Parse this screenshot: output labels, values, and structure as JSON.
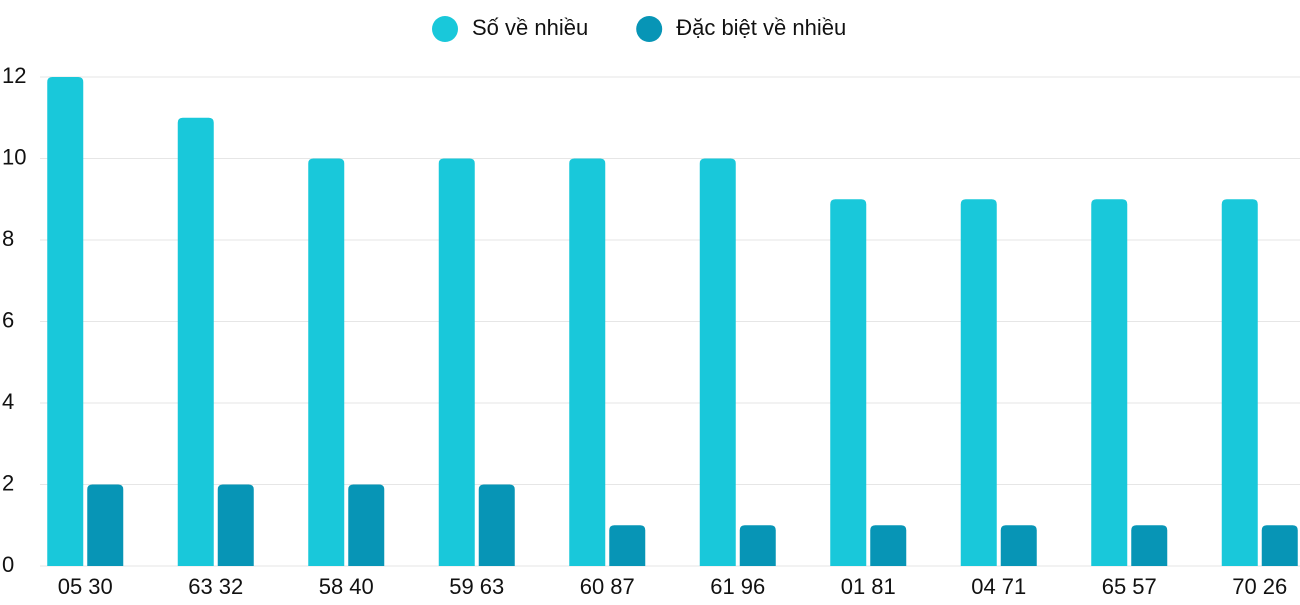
{
  "chart_data": {
    "type": "bar",
    "categories": [
      "05 30",
      "63 32",
      "58 40",
      "59 63",
      "60 87",
      "61 96",
      "01 81",
      "04 71",
      "65 57",
      "70 26"
    ],
    "series": [
      {
        "name": "Số về nhiều",
        "color": "#19c8da",
        "values": [
          12,
          11,
          10,
          10,
          10,
          10,
          9,
          9,
          9,
          9
        ]
      },
      {
        "name": "Đặc biệt về nhiều",
        "color": "#0795b6",
        "values": [
          2,
          2,
          2,
          2,
          1,
          1,
          1,
          1,
          1,
          1
        ]
      }
    ],
    "ylim": [
      0,
      12
    ],
    "yticks": [
      0,
      2,
      4,
      6,
      8,
      10,
      12
    ],
    "grid": true,
    "legend": "top"
  }
}
